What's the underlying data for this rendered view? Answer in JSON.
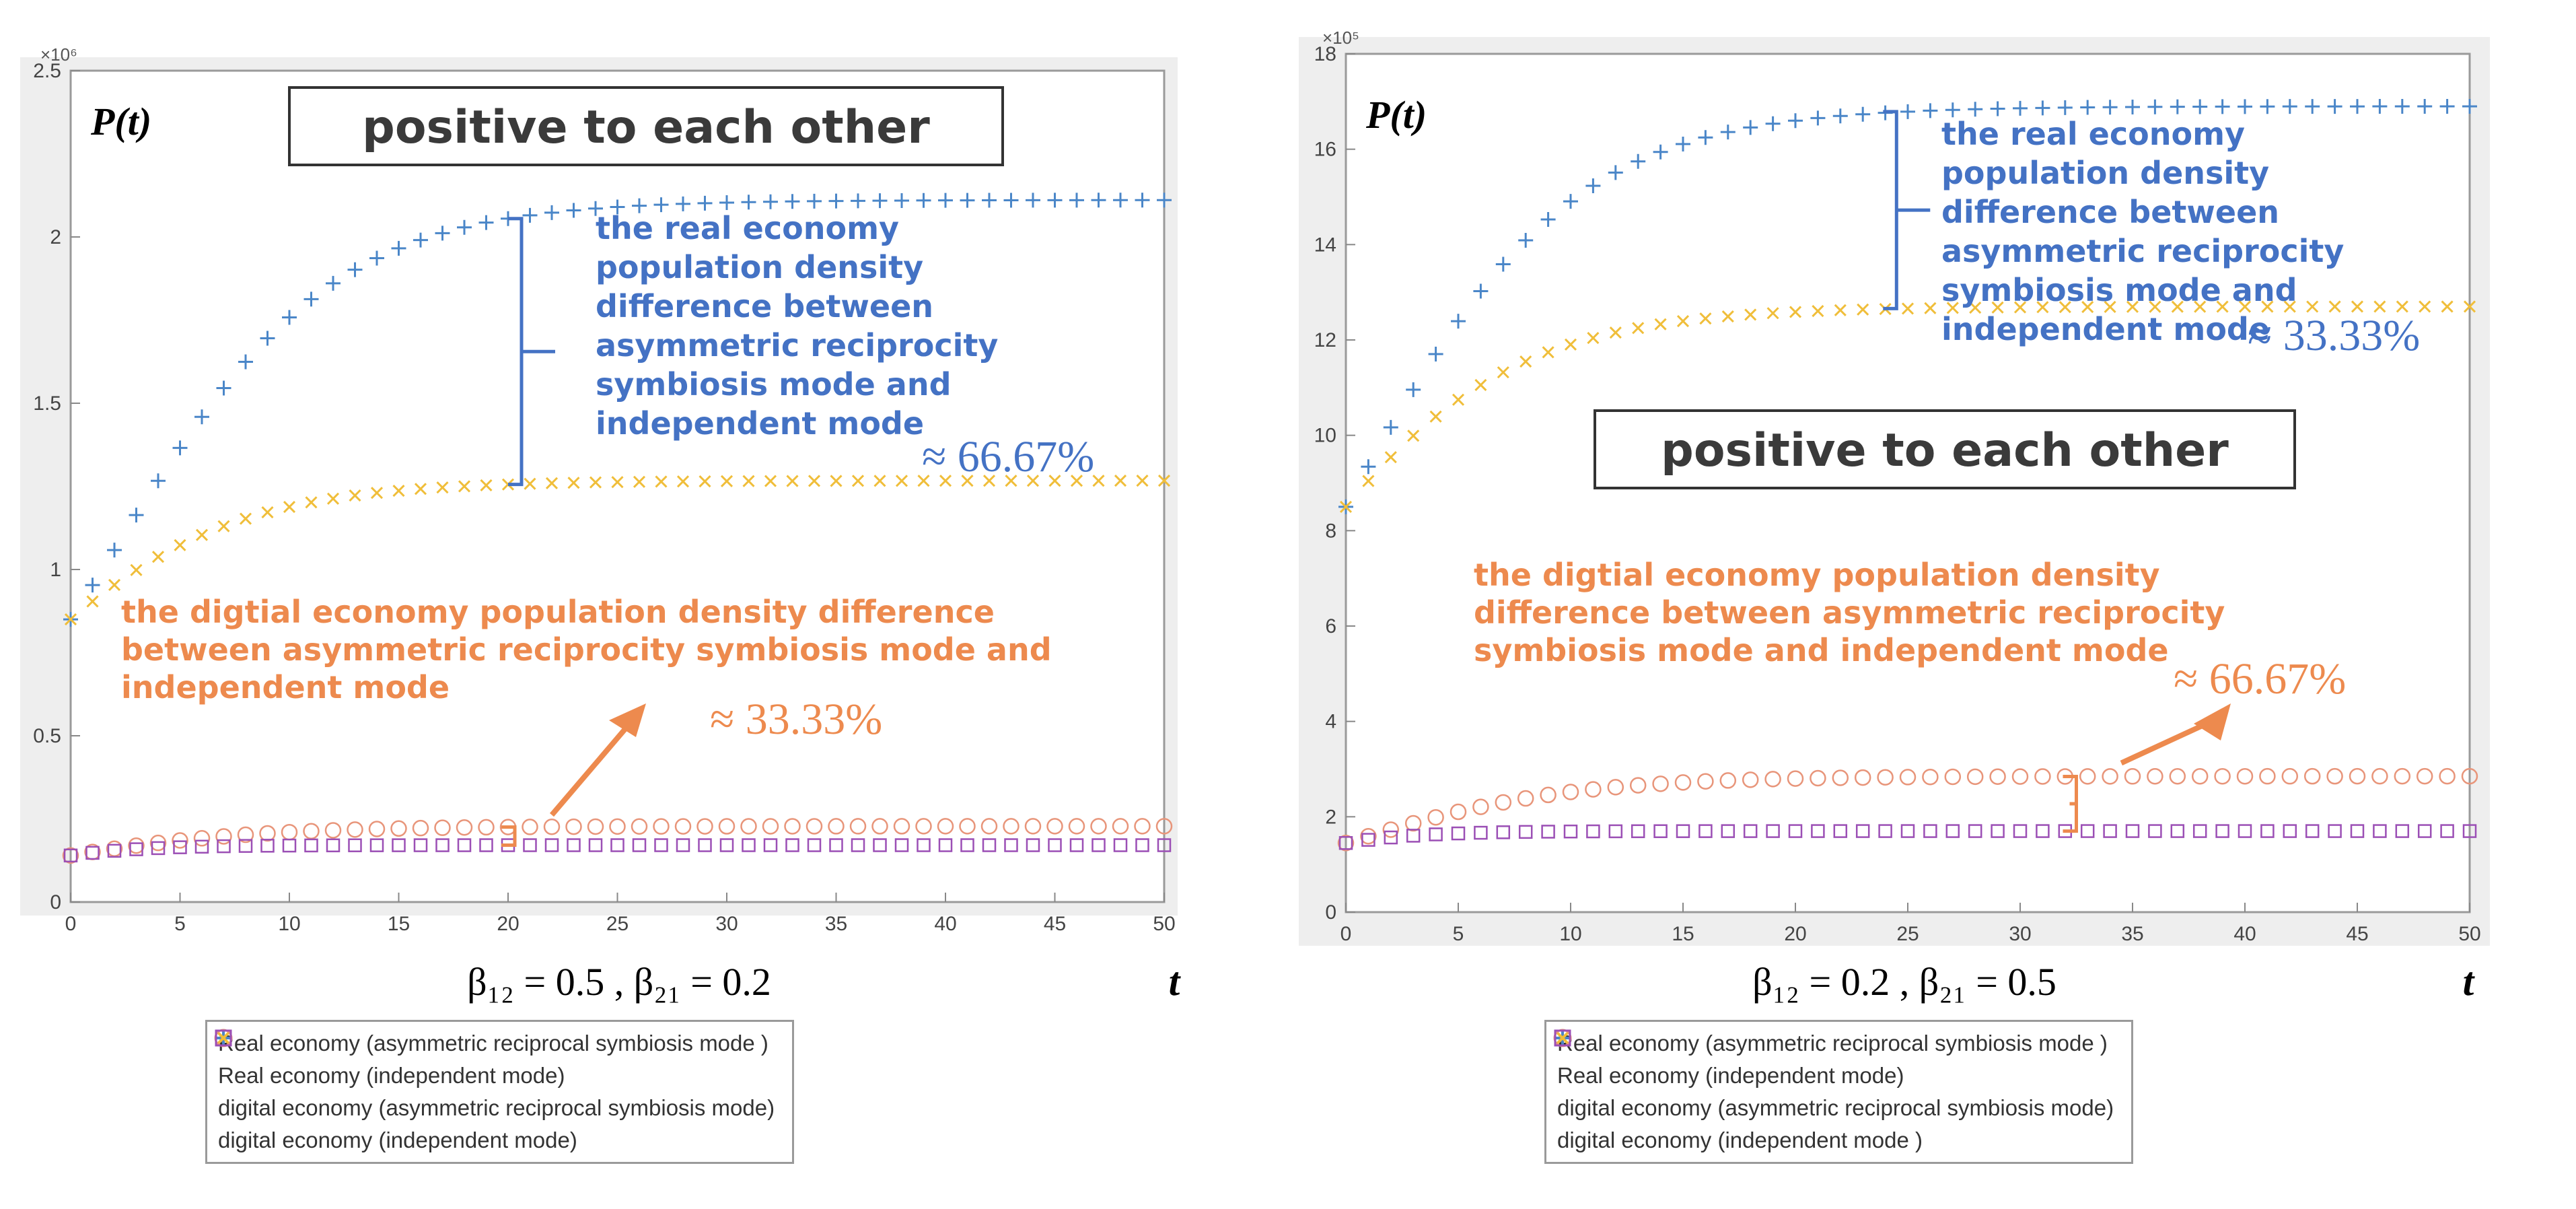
{
  "colors": {
    "real_sym": "#4a86c8",
    "real_ind": "#f0be3a",
    "dig_sym": "#e8957a",
    "dig_ind": "#9b4fb5",
    "annot_blue": "#4472c4",
    "annot_orange": "#ed8a4e"
  },
  "chart_data": [
    {
      "type": "scatter",
      "title": "positive to each other",
      "ylabel": "P(t)",
      "xlabel": "t",
      "y_scale_label": "×10⁶",
      "y_scale": 1000000,
      "xlim": [
        0,
        50
      ],
      "ylim": [
        0,
        2500000
      ],
      "x_ticks": [
        "0",
        "5",
        "10",
        "15",
        "20",
        "25",
        "30",
        "35",
        "40",
        "45",
        "50"
      ],
      "y_ticks": [
        "0",
        "0.5",
        "1",
        "1.5",
        "2",
        "2.5"
      ],
      "caption": "β₁₂ = 0.5 ,   β₂₁ = 0.2",
      "grid": false,
      "legend_position": "bottom-center",
      "series": [
        {
          "name": "Real economy (asymmetric reciprocal symbiosis mode )",
          "marker": "+",
          "color_key": "real_sym",
          "K": 2111000,
          "x0": 850000,
          "r": 0.2
        },
        {
          "name": "Real economy (independent mode)",
          "marker": "x",
          "color_key": "real_ind",
          "K": 1267000,
          "x0": 850000,
          "r": 0.2
        },
        {
          "name": "digital economy (asymmetric reciprocal symbiosis mode)",
          "marker": "o",
          "color_key": "dig_sym",
          "K": 228000,
          "x0": 140000,
          "r": 0.2
        },
        {
          "name": "digital economy (independent mode)",
          "marker": "s",
          "color_key": "dig_ind",
          "K": 171000,
          "x0": 140000,
          "r": 0.35
        }
      ],
      "annotations": {
        "real_text": "the real economy population density difference between asymmetric reciprocity symbiosis mode and independent mode",
        "real_pct": "≈ 66.67%",
        "digital_text": "the digtial economy population density difference between asymmetric reciprocity symbiosis mode and independent mode",
        "digital_pct": "≈ 33.33%"
      }
    },
    {
      "type": "scatter",
      "title": "positive to each other",
      "ylabel": "P(t)",
      "xlabel": "t",
      "y_scale_label": "×10⁵",
      "y_scale": 100000,
      "xlim": [
        0,
        50
      ],
      "ylim": [
        0,
        1800000
      ],
      "x_ticks": [
        "0",
        "5",
        "10",
        "15",
        "20",
        "25",
        "30",
        "35",
        "40",
        "45",
        "50"
      ],
      "y_ticks": [
        "0",
        "2",
        "4",
        "6",
        "8",
        "10",
        "12",
        "14",
        "16",
        "18"
      ],
      "caption": "β₁₂ = 0.2 ,   β₂₁ = 0.5",
      "grid": false,
      "legend_position": "bottom-center",
      "series": [
        {
          "name": "Real economy (asymmetric reciprocal symbiosis mode )",
          "marker": "+",
          "color_key": "real_sym",
          "K": 1690000,
          "x0": 850000,
          "r": 0.2
        },
        {
          "name": "Real economy (independent mode)",
          "marker": "x",
          "color_key": "real_ind",
          "K": 1270000,
          "x0": 850000,
          "r": 0.2
        },
        {
          "name": "digital economy (asymmetric reciprocal symbiosis mode)",
          "marker": "o",
          "color_key": "dig_sym",
          "K": 285000,
          "x0": 145000,
          "r": 0.2
        },
        {
          "name": "digital economy (independent mode )",
          "marker": "s",
          "color_key": "dig_ind",
          "K": 170000,
          "x0": 145000,
          "r": 0.35
        }
      ],
      "annotations": {
        "real_text": "the real economy population density difference between asymmetric reciprocity symbiosis mode and independent mode",
        "real_pct": "≈ 33.33%",
        "digital_text": "the digtial economy population density difference between asymmetric reciprocity symbiosis mode and independent mode",
        "digital_pct": "≈ 66.67%"
      }
    }
  ]
}
